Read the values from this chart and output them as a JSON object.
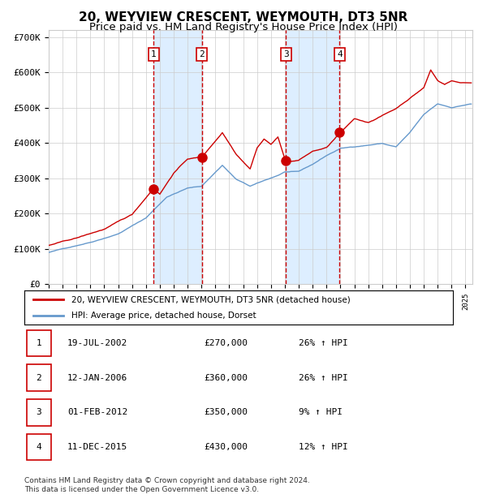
{
  "title": "20, WEYVIEW CRESCENT, WEYMOUTH, DT3 5NR",
  "subtitle": "Price paid vs. HM Land Registry's House Price Index (HPI)",
  "xlim_start": 1995.0,
  "xlim_end": 2025.5,
  "ylim_min": 0,
  "ylim_max": 720000,
  "yticks": [
    0,
    100000,
    200000,
    300000,
    400000,
    500000,
    600000,
    700000
  ],
  "ytick_labels": [
    "£0",
    "£100K",
    "£200K",
    "£300K",
    "£400K",
    "£500K",
    "£600K",
    "£700K"
  ],
  "sale_dates": [
    2002.54,
    2006.04,
    2012.08,
    2015.94
  ],
  "sale_prices": [
    270000,
    360000,
    350000,
    430000
  ],
  "sale_labels": [
    "1",
    "2",
    "3",
    "4"
  ],
  "sale_info": [
    {
      "label": "1",
      "date": "19-JUL-2002",
      "price": "£270,000",
      "hpi": "26% ↑ HPI"
    },
    {
      "label": "2",
      "date": "12-JAN-2006",
      "price": "£360,000",
      "hpi": "26% ↑ HPI"
    },
    {
      "label": "3",
      "date": "01-FEB-2012",
      "price": "£350,000",
      "hpi": "9% ↑ HPI"
    },
    {
      "label": "4",
      "date": "11-DEC-2015",
      "price": "£430,000",
      "hpi": "12% ↑ HPI"
    }
  ],
  "legend_line1": "20, WEYVIEW CRESCENT, WEYMOUTH, DT3 5NR (detached house)",
  "legend_line2": "HPI: Average price, detached house, Dorset",
  "footer1": "Contains HM Land Registry data © Crown copyright and database right 2024.",
  "footer2": "This data is licensed under the Open Government Licence v3.0.",
  "red_line_color": "#cc0000",
  "blue_line_color": "#6699cc",
  "shade_color": "#ddeeff",
  "grid_color": "#cccccc",
  "background_color": "#ffffff",
  "title_fontsize": 11,
  "subtitle_fontsize": 9.5
}
